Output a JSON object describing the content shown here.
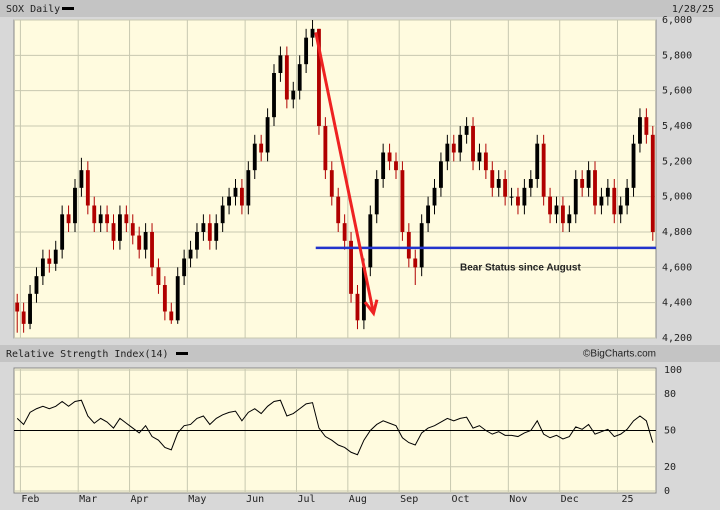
{
  "chart_data": [
    {
      "type": "candlestick",
      "title": "SOX Daily",
      "date": "1/28/25",
      "xlim": [
        0,
        100
      ],
      "ylim": [
        4200,
        6000
      ],
      "yticks": [
        {
          "value": 4200,
          "label": "4,200"
        },
        {
          "value": 4400,
          "label": "4,400"
        },
        {
          "value": 4600,
          "label": "4,600"
        },
        {
          "value": 4800,
          "label": "4,800"
        },
        {
          "value": 5000,
          "label": "5,000"
        },
        {
          "value": 5200,
          "label": "5,200"
        },
        {
          "value": 5400,
          "label": "5,400"
        },
        {
          "value": 5600,
          "label": "5,600"
        },
        {
          "value": 5800,
          "label": "5,800"
        },
        {
          "value": 6000,
          "label": "6,000"
        }
      ],
      "grid": true,
      "up_color": "#000000",
      "down_color": "#b00000",
      "open": [
        4400,
        4350,
        4280,
        4450,
        4550,
        4650,
        4620,
        4700,
        4900,
        4850,
        5050,
        5150,
        4950,
        4850,
        4900,
        4850,
        4750,
        4900,
        4850,
        4780,
        4700,
        4800,
        4600,
        4500,
        4350,
        4300,
        4550,
        4650,
        4700,
        4800,
        4850,
        4750,
        4850,
        4950,
        5000,
        5050,
        4950,
        5150,
        5300,
        5250,
        5450,
        5700,
        5800,
        5550,
        5600,
        5750,
        5900,
        5950,
        5400,
        5150,
        5000,
        4850,
        4750,
        4450,
        4300,
        4600,
        4900,
        5100,
        5250,
        5200,
        5150,
        4800,
        4650,
        4600,
        4850,
        4950,
        5050,
        5200,
        5300,
        5250,
        5350,
        5400,
        5200,
        5250,
        5150,
        5050,
        5100,
        5000,
        5000,
        4950,
        5050,
        5100,
        5300,
        5000,
        4900,
        4950,
        4850,
        4900,
        5100,
        5050,
        5150,
        4950,
        5000,
        5050,
        4900,
        4950,
        5050,
        5300,
        5450,
        5350
      ],
      "high": [
        4450,
        4400,
        4500,
        4600,
        4700,
        4700,
        4750,
        4950,
        4950,
        5100,
        5220,
        5200,
        5000,
        4950,
        4950,
        4900,
        4950,
        4950,
        4900,
        4830,
        4850,
        4850,
        4650,
        4550,
        4400,
        4600,
        4700,
        4750,
        4850,
        4900,
        4900,
        4900,
        5000,
        5050,
        5100,
        5100,
        5200,
        5350,
        5350,
        5500,
        5750,
        5850,
        5850,
        5650,
        5800,
        5950,
        6000,
        5950,
        5450,
        5200,
        5050,
        4900,
        4800,
        4500,
        4650,
        4950,
        5150,
        5300,
        5300,
        5250,
        5200,
        4850,
        4700,
        4900,
        5000,
        5100,
        5250,
        5350,
        5350,
        5400,
        5450,
        5450,
        5300,
        5300,
        5200,
        5150,
        5150,
        5050,
        5050,
        5100,
        5150,
        5350,
        5350,
        5050,
        5000,
        5000,
        4950,
        5150,
        5150,
        5200,
        5200,
        5050,
        5100,
        5100,
        5000,
        5100,
        5350,
        5500,
        5500,
        5400
      ],
      "low": [
        4230,
        4230,
        4250,
        4400,
        4500,
        4570,
        4580,
        4650,
        4800,
        4800,
        5000,
        4900,
        4800,
        4800,
        4800,
        4700,
        4700,
        4800,
        4730,
        4650,
        4650,
        4550,
        4450,
        4300,
        4280,
        4280,
        4500,
        4600,
        4650,
        4750,
        4700,
        4700,
        4800,
        4900,
        4950,
        4900,
        4900,
        5100,
        5200,
        5200,
        5400,
        5650,
        5500,
        5500,
        5550,
        5700,
        5850,
        5350,
        5100,
        4950,
        4800,
        4700,
        4400,
        4250,
        4250,
        4550,
        4850,
        5050,
        5150,
        5100,
        4750,
        4600,
        4500,
        4550,
        4800,
        4900,
        5000,
        5150,
        5200,
        5200,
        5300,
        5150,
        5150,
        5100,
        5000,
        5000,
        4950,
        4950,
        4900,
        4900,
        5000,
        5050,
        4950,
        4850,
        4850,
        4800,
        4800,
        4850,
        5000,
        5000,
        4900,
        4900,
        4950,
        4850,
        4850,
        4900,
        5000,
        5250,
        5300,
        4750
      ],
      "close": [
        4350,
        4280,
        4450,
        4550,
        4650,
        4620,
        4700,
        4900,
        4850,
        5050,
        5150,
        4950,
        4850,
        4900,
        4850,
        4750,
        4900,
        4850,
        4780,
        4700,
        4800,
        4600,
        4500,
        4350,
        4300,
        4550,
        4650,
        4700,
        4800,
        4850,
        4750,
        4850,
        4950,
        5000,
        5050,
        4950,
        5150,
        5300,
        5250,
        5450,
        5700,
        5800,
        5550,
        5600,
        5750,
        5900,
        5950,
        5400,
        5150,
        5000,
        4850,
        4750,
        4450,
        4300,
        4600,
        4900,
        5100,
        5250,
        5200,
        5150,
        4800,
        4650,
        4600,
        4850,
        4950,
        5050,
        5200,
        5300,
        5250,
        5350,
        5400,
        5200,
        5250,
        5150,
        5050,
        5100,
        5000,
        5000,
        4950,
        5050,
        5100,
        5300,
        5000,
        4900,
        4950,
        4850,
        4900,
        5100,
        5050,
        5150,
        4950,
        5000,
        5050,
        4900,
        4950,
        5050,
        5300,
        5450,
        5350,
        4800
      ],
      "support_line": {
        "value": 4710,
        "x": [
          47,
          100
        ],
        "color": "#2233cc",
        "label": "Bear Status since August"
      },
      "arrow": {
        "x": [
          47,
          56
        ],
        "y": [
          5930,
          4340
        ],
        "color": "#ee2222"
      }
    },
    {
      "type": "line",
      "title": "Relative Strength Index(14)",
      "credit": "©BigCharts.com",
      "xlim": [
        0,
        100
      ],
      "xticks": [
        {
          "value": 1,
          "label": "Feb"
        },
        {
          "value": 10,
          "label": "Mar"
        },
        {
          "value": 18,
          "label": "Apr"
        },
        {
          "value": 27,
          "label": "May"
        },
        {
          "value": 36,
          "label": "Jun"
        },
        {
          "value": 44,
          "label": "Jul"
        },
        {
          "value": 52,
          "label": "Aug"
        },
        {
          "value": 60,
          "label": "Sep"
        },
        {
          "value": 68,
          "label": "Oct"
        },
        {
          "value": 77,
          "label": "Nov"
        },
        {
          "value": 85,
          "label": "Dec"
        },
        {
          "value": 94,
          "label": "25"
        }
      ],
      "ylim": [
        0,
        100
      ],
      "yticks": [
        0,
        20,
        50,
        80,
        100
      ],
      "reference_line": 50,
      "color": "#000000",
      "values": [
        60,
        55,
        65,
        68,
        70,
        68,
        70,
        74,
        70,
        74,
        75,
        62,
        56,
        60,
        57,
        52,
        60,
        56,
        52,
        48,
        54,
        45,
        42,
        36,
        34,
        48,
        54,
        55,
        60,
        62,
        55,
        60,
        63,
        65,
        66,
        58,
        65,
        68,
        64,
        70,
        74,
        75,
        62,
        64,
        68,
        72,
        73,
        52,
        45,
        42,
        38,
        36,
        32,
        30,
        42,
        50,
        55,
        58,
        56,
        54,
        44,
        40,
        38,
        48,
        52,
        54,
        57,
        60,
        58,
        60,
        61,
        52,
        54,
        50,
        47,
        49,
        46,
        46,
        45,
        48,
        50,
        58,
        47,
        44,
        46,
        43,
        45,
        53,
        51,
        55,
        47,
        49,
        51,
        45,
        47,
        51,
        58,
        62,
        58,
        40
      ]
    }
  ]
}
